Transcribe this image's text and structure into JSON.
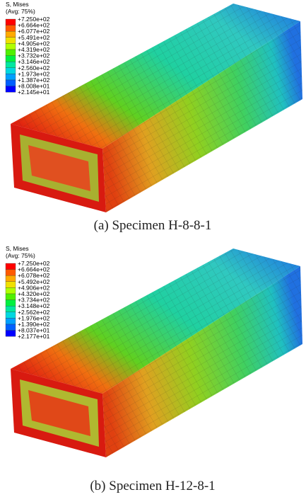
{
  "panels": [
    {
      "legend": {
        "title": "S, Mises",
        "subtitle": "(Avg: 75%)",
        "labels": [
          "+7.250e+02",
          "+6.664e+02",
          "+6.077e+02",
          "+5.491e+02",
          "+4.905e+02",
          "+4.319e+02",
          "+3.732e+02",
          "+3.146e+02",
          "+2.560e+02",
          "+1.973e+02",
          "+1.387e+02",
          "+8.008e+01",
          "+2.145e+01"
        ]
      },
      "caption": "(a) Specimen H-8-8-1"
    },
    {
      "legend": {
        "title": "S, Mises",
        "subtitle": "(Avg: 75%)",
        "labels": [
          "+7.250e+02",
          "+6.664e+02",
          "+6.078e+02",
          "+5.492e+02",
          "+4.906e+02",
          "+4.320e+02",
          "+3.734e+02",
          "+3.148e+02",
          "+2.562e+02",
          "+1.976e+02",
          "+1.390e+02",
          "+8.037e+01",
          "+2.177e+01"
        ]
      },
      "caption": "(b) Specimen H-12-8-1"
    }
  ]
}
